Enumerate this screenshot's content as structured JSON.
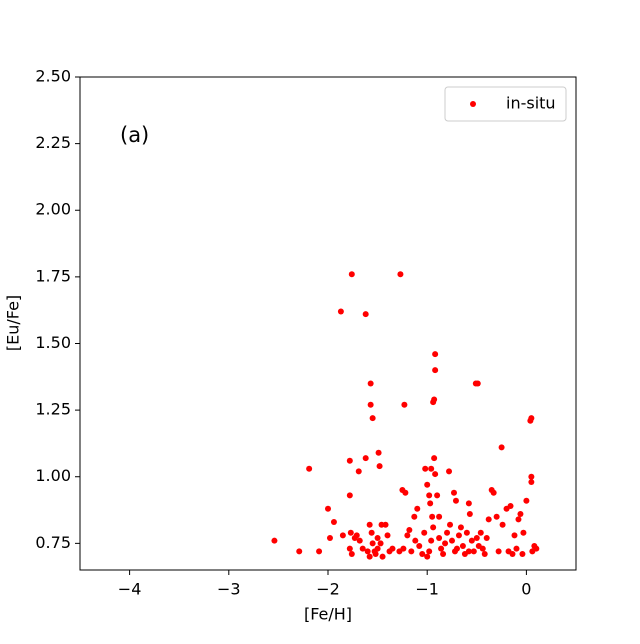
{
  "chart_data": {
    "type": "scatter",
    "annotation": "(a)",
    "xlabel": "[Fe/H]",
    "ylabel": "[Eu/Fe]",
    "xlim": [
      -4.5,
      0.5
    ],
    "ylim": [
      0.65,
      2.5
    ],
    "xticks": [
      {
        "value": -4,
        "label": "−4"
      },
      {
        "value": -3,
        "label": "−3"
      },
      {
        "value": -2,
        "label": "−2"
      },
      {
        "value": -1,
        "label": "−1"
      },
      0
    ],
    "yticks": [
      {
        "value": 0.75,
        "label": "0.75"
      },
      {
        "value": 1,
        "label": "1.00"
      },
      {
        "value": 1.25,
        "label": "1.25"
      },
      {
        "value": 1.5,
        "label": "1.50"
      },
      {
        "value": 1.75,
        "label": "1.75"
      },
      {
        "value": 2,
        "label": "2.00"
      },
      {
        "value": 2.25,
        "label": "2.25"
      },
      {
        "value": 2.5,
        "label": "2.50"
      }
    ],
    "legend": "upper right",
    "series": [
      {
        "name": "in-situ",
        "color": "#ff0000",
        "x": [
          -2.54,
          -2.29,
          -2.19,
          -2.09,
          -2.0,
          -1.98,
          -1.94,
          -1.87,
          -1.78,
          -1.76,
          -1.78,
          -1.77,
          -1.78,
          -1.76,
          -1.73,
          -1.71,
          -1.68,
          -1.69,
          -1.62,
          -1.62,
          -1.6,
          -1.58,
          -1.57,
          -1.57,
          -1.55,
          -1.58,
          -1.56,
          -1.55,
          -1.53,
          -1.52,
          -1.5,
          -1.49,
          -1.48,
          -1.46,
          -1.5,
          -1.47,
          -1.45,
          -1.42,
          -1.4,
          -1.38,
          -1.27,
          -1.23,
          -1.25,
          -1.22,
          -1.28,
          -1.24,
          -1.2,
          -1.18,
          -1.16,
          -1.13,
          -1.1,
          -1.08,
          -1.05,
          -1.03,
          -1.02,
          -1.0,
          -0.98,
          -0.97,
          -0.96,
          -0.95,
          -0.94,
          -0.93,
          -0.93,
          -0.92,
          -0.92,
          -0.92,
          -0.94,
          -0.96,
          -0.98,
          -1.0,
          -0.9,
          -0.88,
          -0.86,
          -0.84,
          -0.82,
          -0.8,
          -0.78,
          -0.77,
          -0.75,
          -0.73,
          -0.71,
          -0.7,
          -0.68,
          -0.66,
          -0.64,
          -0.62,
          -0.6,
          -0.58,
          -0.57,
          -0.55,
          -0.53,
          -0.51,
          -0.49,
          -0.5,
          -0.48,
          -0.46,
          -0.44,
          -0.42,
          -0.4,
          -0.38,
          -0.35,
          -0.33,
          -0.3,
          -0.28,
          -0.25,
          -0.24,
          -0.2,
          -0.18,
          -0.16,
          -0.14,
          -0.12,
          -0.1,
          -0.08,
          -0.06,
          -0.04,
          -0.03,
          0.0,
          0.04,
          0.05,
          0.05,
          0.05,
          0.06,
          0.08,
          0.1,
          -1.85,
          -1.65,
          -1.35,
          -1.12,
          -0.88,
          -0.72,
          -0.58
        ],
        "values": [
          0.76,
          0.72,
          1.03,
          0.72,
          0.88,
          0.77,
          0.83,
          1.62,
          1.06,
          1.76,
          0.93,
          0.79,
          0.73,
          0.71,
          0.77,
          0.78,
          0.76,
          1.02,
          1.61,
          1.07,
          0.72,
          0.7,
          1.35,
          1.27,
          1.22,
          0.82,
          0.79,
          0.75,
          0.72,
          0.71,
          0.73,
          1.09,
          1.04,
          0.82,
          0.77,
          0.75,
          0.7,
          0.82,
          0.78,
          0.72,
          1.76,
          1.27,
          0.95,
          0.94,
          0.72,
          0.73,
          0.78,
          0.8,
          0.72,
          0.85,
          0.88,
          0.74,
          0.71,
          0.79,
          1.03,
          0.97,
          0.93,
          0.9,
          1.03,
          0.85,
          1.28,
          1.29,
          1.07,
          1.46,
          1.4,
          1.01,
          0.81,
          0.76,
          0.72,
          0.7,
          0.93,
          0.85,
          0.73,
          0.71,
          0.75,
          0.79,
          1.02,
          0.82,
          0.76,
          0.94,
          0.91,
          0.73,
          0.78,
          0.81,
          0.74,
          0.71,
          0.79,
          0.9,
          0.86,
          0.76,
          0.72,
          1.35,
          1.35,
          0.77,
          0.74,
          0.79,
          0.73,
          0.71,
          0.77,
          0.84,
          0.95,
          0.94,
          0.85,
          0.72,
          1.11,
          0.82,
          0.88,
          0.72,
          0.89,
          0.71,
          0.78,
          0.73,
          0.84,
          0.86,
          0.71,
          0.79,
          0.91,
          1.21,
          1.22,
          1.0,
          0.98,
          0.72,
          0.74,
          0.73,
          0.78,
          0.73,
          0.73,
          0.76,
          0.77,
          0.72,
          0.72
        ]
      }
    ]
  }
}
